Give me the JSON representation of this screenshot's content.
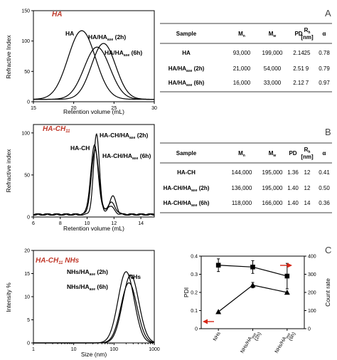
{
  "panelA": {
    "letter": "A",
    "title": "HA",
    "chart_data": {
      "type": "line",
      "xlabel": "Retention volume (mL)",
      "ylabel": "Refractive Index",
      "xlim": [
        15,
        30
      ],
      "ylim": [
        0,
        150
      ],
      "xticks": [
        15,
        20,
        25,
        30
      ],
      "yticks": [
        0,
        50,
        100,
        150
      ],
      "series": [
        {
          "name": "HA",
          "peaks": [
            {
              "x": 21.0,
              "y": 113,
              "w": 1.7
            }
          ],
          "baseline": 4
        },
        {
          "name": "HA/HAase (2h)",
          "peaks": [
            {
              "x": 22.9,
              "y": 86,
              "w": 1.6
            }
          ],
          "baseline": 4
        },
        {
          "name": "HA/HAase (6h)",
          "peaks": [
            {
              "x": 23.7,
              "y": 92,
              "w": 1.5
            }
          ],
          "baseline": 4
        }
      ]
    },
    "labels": [
      {
        "text": "HA",
        "sub": ""
      },
      {
        "text": "HA/HA",
        "sub": "ase",
        "suffix": " (2h)"
      },
      {
        "text": "HA/HA",
        "sub": "ase",
        "suffix": " (6h)"
      }
    ],
    "table": {
      "headers": [
        "Sample",
        "M",
        "M",
        "PD",
        "R",
        "[nm]",
        "α"
      ],
      "header_subs": [
        "",
        "n",
        "w",
        "",
        "h",
        "",
        ""
      ],
      "rows": [
        {
          "sample": "HA",
          "sample_sub": "",
          "sample_suffix": "",
          "mn": "93,000",
          "mw": "199,000",
          "pd": "2.14",
          "rh": "25",
          "alpha": "0.78"
        },
        {
          "sample": "HA/HA",
          "sample_sub": "ase",
          "sample_suffix": " (2h)",
          "mn": "21,000",
          "mw": "54,000",
          "pd": "2.51",
          "rh": "9",
          "alpha": "0.79"
        },
        {
          "sample": "HA/HA",
          "sample_sub": "ase",
          "sample_suffix": " (6h)",
          "mn": "16,000",
          "mw": "33,000",
          "pd": "2.12",
          "rh": "7",
          "alpha": "0.97"
        }
      ]
    }
  },
  "panelB": {
    "letter": "B",
    "title": "HA-CH",
    "title_sub": "11",
    "chart_data": {
      "type": "line",
      "xlabel": "Retention volume (mL)",
      "ylabel": "Refractive index",
      "xlim": [
        6,
        15
      ],
      "ylim": [
        0,
        110
      ],
      "xticks": [
        6,
        8,
        10,
        12,
        14
      ],
      "yticks": [
        0,
        50,
        100
      ],
      "series": [
        {
          "name": "HA-CH/HAase (2h)",
          "peaks": [
            {
              "x": 10.7,
              "y": 95,
              "w": 0.22
            },
            {
              "x": 11.9,
              "y": 22,
              "w": 0.25
            }
          ],
          "baseline": 3
        },
        {
          "name": "HA-CH",
          "peaks": [
            {
              "x": 10.55,
              "y": 82,
              "w": 0.28
            },
            {
              "x": 11.7,
              "y": 10,
              "w": 0.3
            }
          ],
          "baseline": 3
        },
        {
          "name": "HA-CH/HAase (6h)",
          "peaks": [
            {
              "x": 10.6,
              "y": 77,
              "w": 0.28
            },
            {
              "x": 11.8,
              "y": 14,
              "w": 0.3
            }
          ],
          "baseline": 3
        }
      ]
    },
    "labels": [
      {
        "text": "HA-CH/HA",
        "sub": "ase",
        "suffix": " (2h)"
      },
      {
        "text": "HA-CH",
        "sub": "",
        "suffix": ""
      },
      {
        "text": "HA-CH/HA",
        "sub": "ase",
        "suffix": " (6h)"
      }
    ],
    "table": {
      "headers": [
        "Sample",
        "M",
        "M",
        "PD",
        "R",
        "[nm]",
        "α"
      ],
      "header_subs": [
        "",
        "n",
        "w",
        "",
        "h",
        "",
        ""
      ],
      "rows": [
        {
          "sample": "HA-CH",
          "sample_sub": "",
          "sample_suffix": "",
          "mn": "144,000",
          "mw": "195,000",
          "pd": "1.36",
          "rh": "12",
          "alpha": "0.41"
        },
        {
          "sample": "HA-CH/HA",
          "sample_sub": "ase",
          "sample_suffix": " (2h)",
          "mn": "136,000",
          "mw": "195,000",
          "pd": "1.40",
          "rh": "12",
          "alpha": "0.50"
        },
        {
          "sample": "HA-CH/HA",
          "sample_sub": "ase",
          "sample_suffix": " (6h)",
          "mn": "118,000",
          "mw": "166,000",
          "pd": "1.40",
          "rh": "14",
          "alpha": "0.36"
        }
      ]
    }
  },
  "panelC": {
    "letter": "C",
    "title": "HA-CH",
    "title_sub": "11",
    "title_suffix": " NHs",
    "chart_data": {
      "type": "line",
      "xlabel": "Size (nm)",
      "ylabel": "Intensity %",
      "xscale": "log",
      "xlim": [
        1,
        1000
      ],
      "ylim": [
        0,
        20
      ],
      "xticks": [
        1,
        10,
        100,
        1000
      ],
      "yticks": [
        0,
        5,
        10,
        15,
        20
      ],
      "series": [
        {
          "name": "NHs/HAase (2h)",
          "peak_x": 200,
          "peak_y": 15.4,
          "w": 0.2
        },
        {
          "name": "NHs",
          "peak_x": 260,
          "peak_y": 14.7,
          "w": 0.2
        },
        {
          "name": "NHs/HAase (6h)",
          "peak_x": 235,
          "peak_y": 13.0,
          "w": 0.2
        }
      ]
    },
    "labels": [
      {
        "text": "NHs/HA",
        "sub": "ase",
        "suffix": " (2h)"
      },
      {
        "text": "NHs",
        "sub": "",
        "suffix": ""
      },
      {
        "text": "NHs/HA",
        "sub": "ase",
        "suffix": " (6h)"
      }
    ],
    "pdi_chart": {
      "type": "scatter",
      "ylabel_left": "PDI",
      "ylabel_right": "Count rate",
      "ylim_left": [
        0,
        0.4
      ],
      "ylim_right": [
        0,
        400
      ],
      "yticks_left": [
        "0",
        "0.1",
        "0.2",
        "0.3",
        "0.4"
      ],
      "yticks_right": [
        "0",
        "100",
        "200",
        "300",
        "400"
      ],
      "categories": [
        {
          "text": "NHs",
          "sub": "",
          "suffix": ""
        },
        {
          "text": "NHs/HA",
          "sub": "ase",
          "suffix": "",
          "line2": "(2h)"
        },
        {
          "text": "NHs/HA",
          "sub": "ase",
          "suffix": "",
          "line2": "(6h)"
        }
      ],
      "series": [
        {
          "marker": "square",
          "axis": "left",
          "values": [
            0.35,
            0.34,
            0.29
          ],
          "errors": [
            0.035,
            0.035,
            0.07
          ]
        },
        {
          "marker": "triangle",
          "axis": "right",
          "values": [
            93,
            240,
            200
          ],
          "errors": [
            0,
            15,
            0
          ]
        }
      ],
      "arrow_color": "#d62718"
    }
  }
}
